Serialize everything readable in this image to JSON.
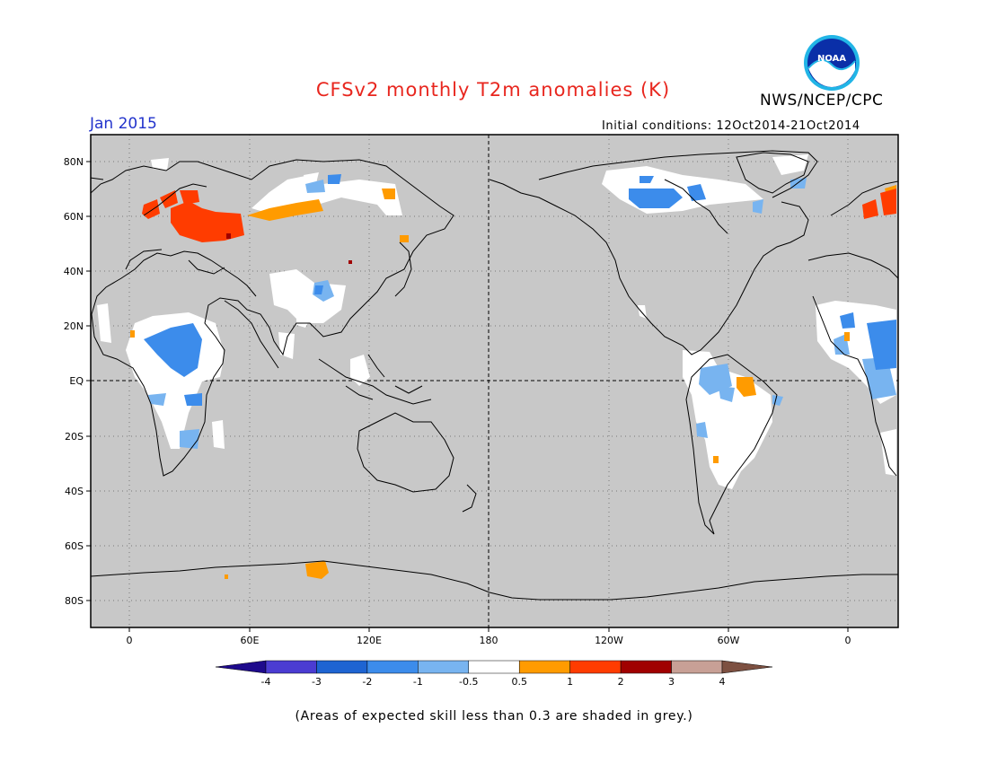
{
  "header": {
    "title": "CFSv2 monthly T2m anomalies (K)",
    "agency": "NWS/NCEP/CPC",
    "month": "Jan 2015",
    "initial_conditions": "Initial conditions: 12Oct2014-21Oct2014",
    "logo_text": "NOAA"
  },
  "map": {
    "lat_labels": [
      "80N",
      "60N",
      "40N",
      "20N",
      "EQ",
      "20S",
      "40S",
      "60S",
      "80S"
    ],
    "lon_labels": [
      "0",
      "60E",
      "120E",
      "180",
      "120W",
      "60W",
      "0"
    ],
    "background_color": "#c8c8c8"
  },
  "colorbar": {
    "colors": [
      "#1e0a8c",
      "#4b3cd2",
      "#1e64d2",
      "#3c8ceb",
      "#78b4f0",
      "#ffffff",
      "#ff9b00",
      "#ff3c00",
      "#a00000",
      "#c8a096",
      "#7d5041"
    ],
    "labels": [
      "-4",
      "-3",
      "-2",
      "-1",
      "-0.5",
      "0.5",
      "1",
      "2",
      "3",
      "4"
    ]
  },
  "footnote": "(Areas of expected skill less than 0.3 are shaded in grey.)"
}
